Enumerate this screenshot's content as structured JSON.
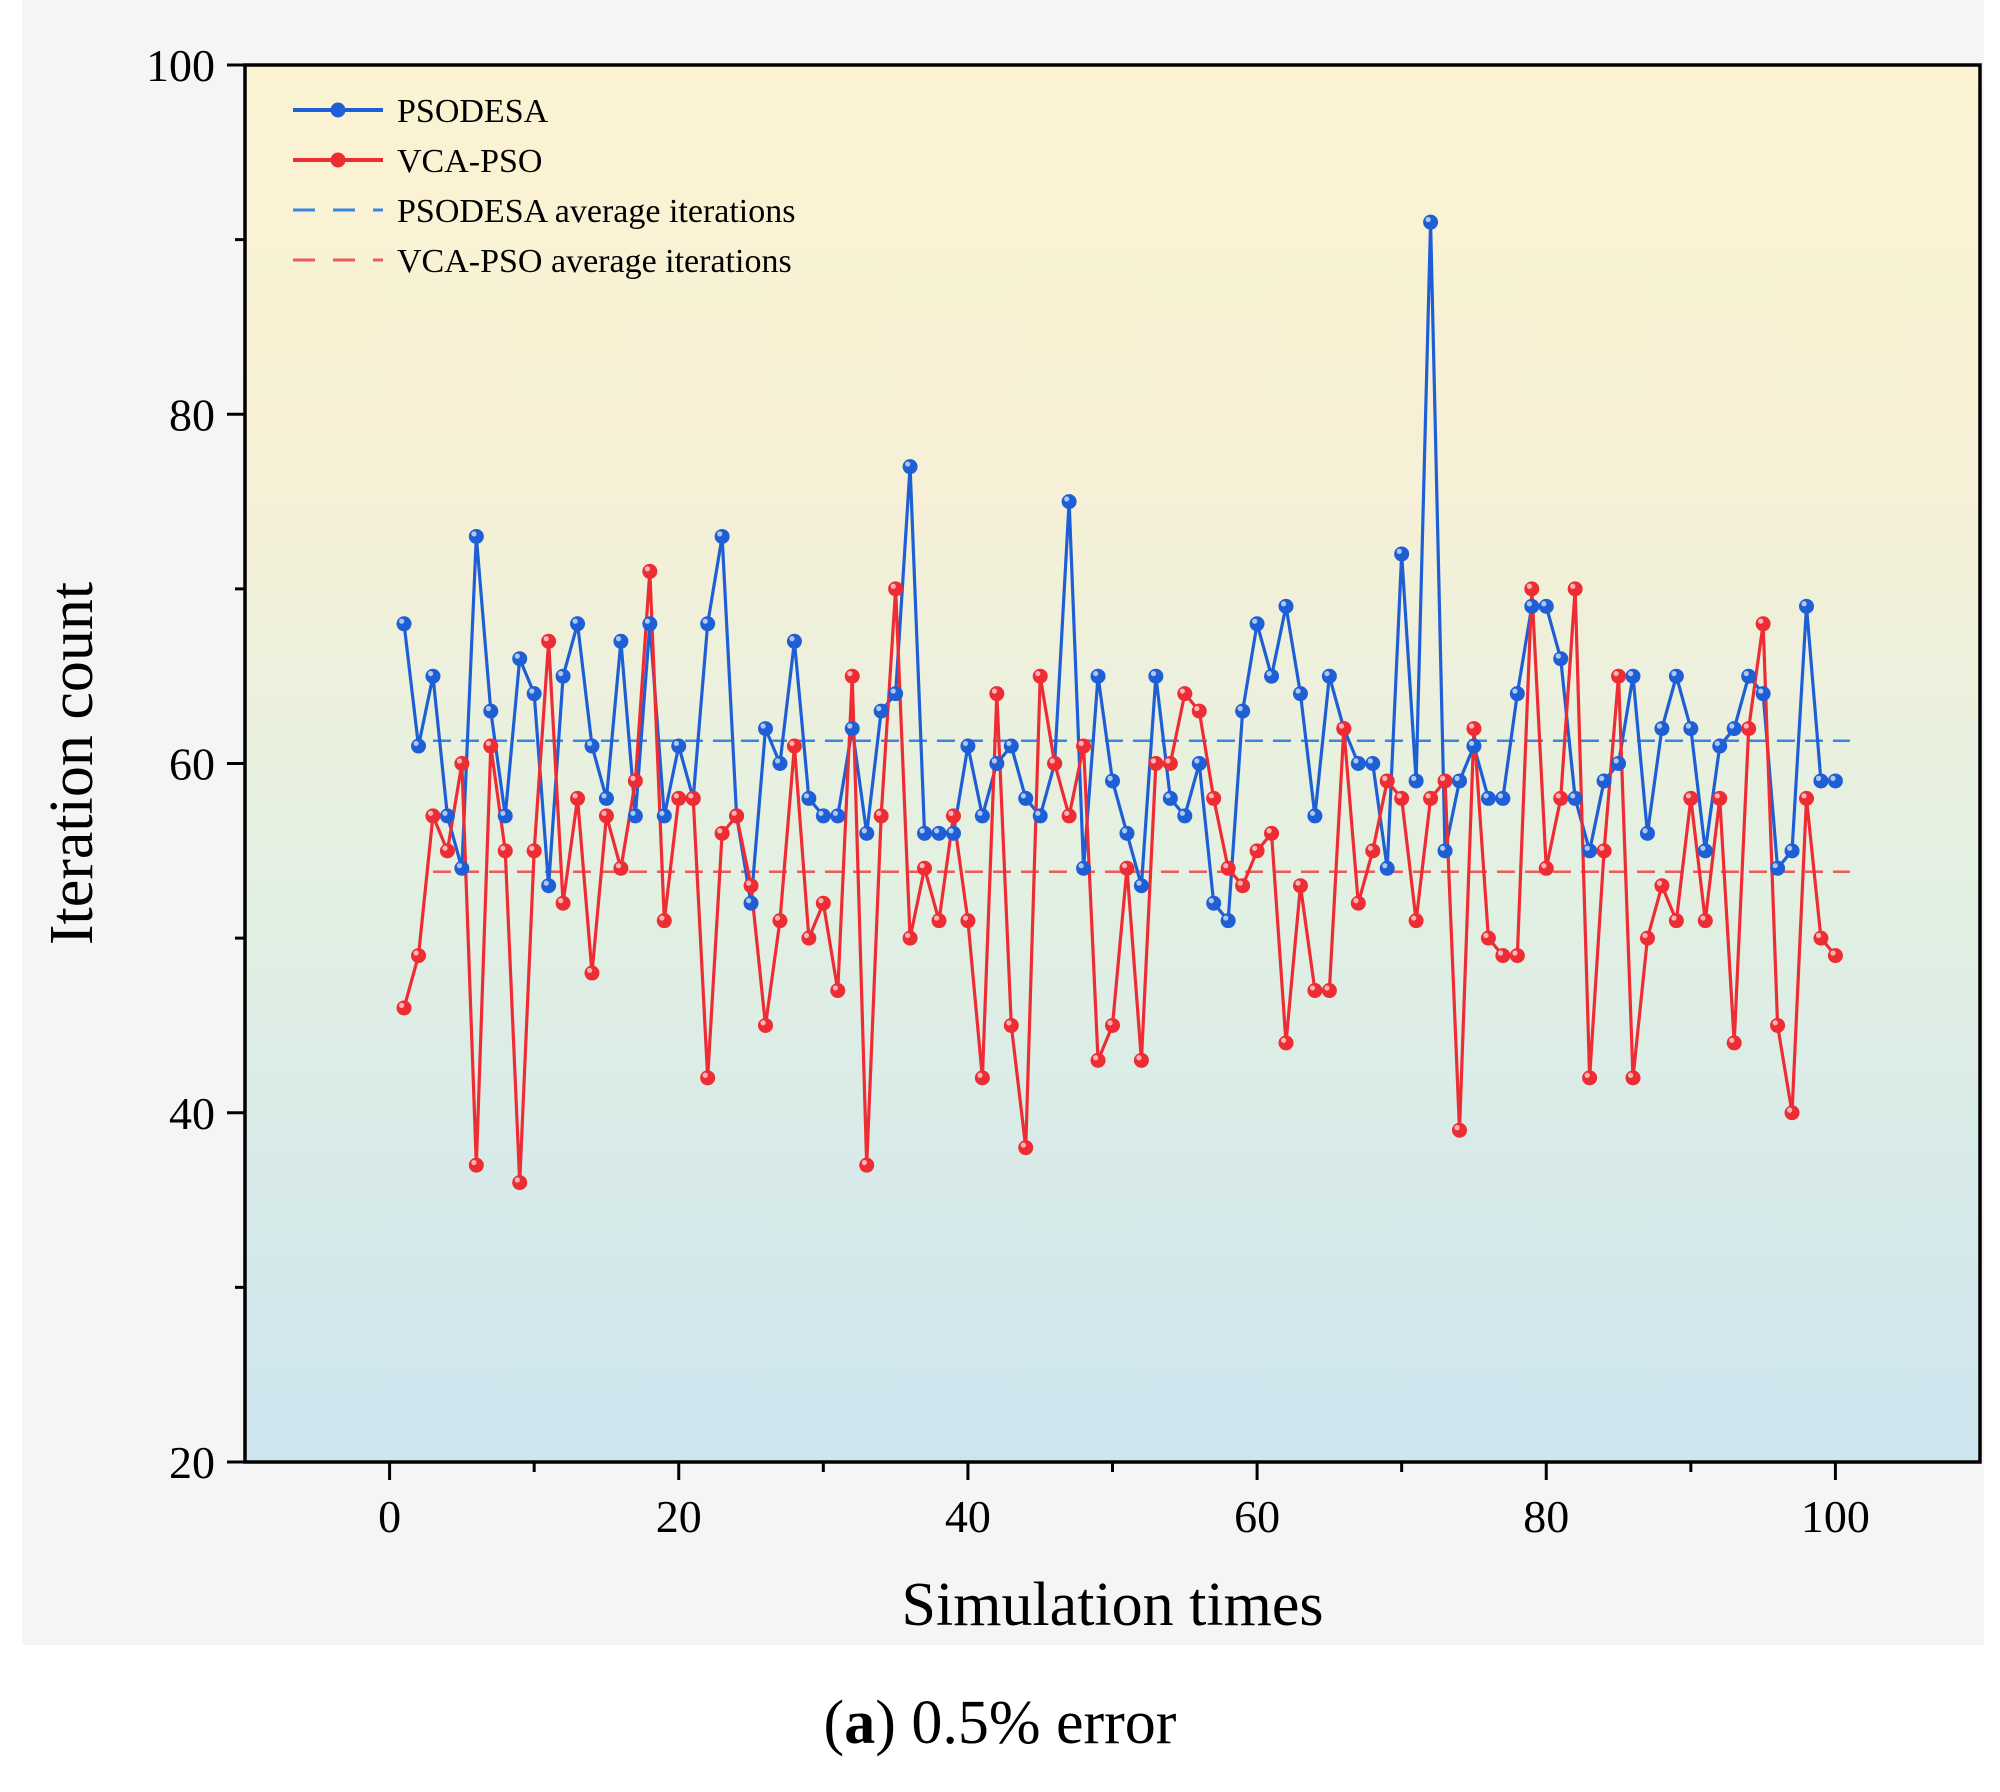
{
  "caption": {
    "open_paren": "(",
    "letter": "a",
    "text": ") 0.5% error"
  },
  "colors": {
    "psodesa": "#1f5fd6",
    "vca": "#ee2c34",
    "psodesa_avg": "#3a86e0",
    "vca_avg": "#ec5a5a",
    "bg_top": "#fbf3d2",
    "bg_mid": "#e3f0e2",
    "bg_bottom": "#cde5ef"
  },
  "chart_data": {
    "type": "line",
    "title": "",
    "xlabel": "Simulation times",
    "ylabel": "Iteration count",
    "xlim": [
      -10,
      110
    ],
    "ylim": [
      20,
      100
    ],
    "xticks": [
      0,
      20,
      40,
      60,
      80,
      100
    ],
    "xtick_labels": [
      "0",
      "20",
      "40",
      "60",
      "80",
      "100"
    ],
    "yticks": [
      20,
      40,
      60,
      80,
      100
    ],
    "ytick_labels": [
      "20",
      "40",
      "60",
      "80",
      "100"
    ],
    "y_minor_ticks": [
      30,
      50,
      70,
      90
    ],
    "x_minor_ticks": [
      10,
      30,
      50,
      70,
      90
    ],
    "legend_position": "top-left",
    "x": [
      1,
      2,
      3,
      4,
      5,
      6,
      7,
      8,
      9,
      10,
      11,
      12,
      13,
      14,
      15,
      16,
      17,
      18,
      19,
      20,
      21,
      22,
      23,
      24,
      25,
      26,
      27,
      28,
      29,
      30,
      31,
      32,
      33,
      34,
      35,
      36,
      37,
      38,
      39,
      40,
      41,
      42,
      43,
      44,
      45,
      46,
      47,
      48,
      49,
      50,
      51,
      52,
      53,
      54,
      55,
      56,
      57,
      58,
      59,
      60,
      61,
      62,
      63,
      64,
      65,
      66,
      67,
      68,
      69,
      70,
      71,
      72,
      73,
      74,
      75,
      76,
      77,
      78,
      79,
      80,
      81,
      82,
      83,
      84,
      85,
      86,
      87,
      88,
      89,
      90,
      91,
      92,
      93,
      94,
      95,
      96,
      97,
      98,
      99,
      100
    ],
    "series": [
      {
        "name": "PSODESA",
        "style": "line-marker",
        "values": [
          68,
          61,
          65,
          57,
          54,
          73,
          63,
          57,
          66,
          64,
          53,
          65,
          68,
          61,
          58,
          67,
          57,
          68,
          57,
          61,
          58,
          68,
          73,
          57,
          52,
          62,
          60,
          67,
          58,
          57,
          57,
          62,
          56,
          63,
          64,
          77,
          56,
          56,
          56,
          61,
          57,
          60,
          61,
          58,
          57,
          60,
          75,
          54,
          65,
          59,
          56,
          53,
          65,
          58,
          57,
          60,
          52,
          51,
          63,
          68,
          65,
          69,
          64,
          57,
          65,
          62,
          60,
          60,
          54,
          72,
          59,
          91,
          55,
          59,
          61,
          58,
          58,
          64,
          69,
          69,
          66,
          58,
          55,
          59,
          60,
          65,
          56,
          62,
          65,
          62,
          55,
          61,
          62,
          65,
          64,
          54,
          55,
          69,
          59,
          59
        ]
      },
      {
        "name": "VCA-PSO",
        "style": "line-marker",
        "values": [
          46,
          49,
          57,
          55,
          60,
          37,
          61,
          55,
          36,
          55,
          67,
          52,
          58,
          48,
          57,
          54,
          59,
          71,
          51,
          58,
          58,
          42,
          56,
          57,
          53,
          45,
          51,
          61,
          50,
          52,
          47,
          65,
          37,
          57,
          70,
          50,
          54,
          51,
          57,
          51,
          42,
          64,
          45,
          38,
          65,
          60,
          57,
          61,
          43,
          45,
          54,
          43,
          60,
          60,
          64,
          63,
          58,
          54,
          53,
          55,
          56,
          44,
          53,
          47,
          47,
          62,
          52,
          55,
          59,
          58,
          51,
          58,
          59,
          39,
          62,
          50,
          49,
          49,
          70,
          54,
          58,
          70,
          42,
          55,
          65,
          42,
          50,
          53,
          51,
          58,
          51,
          58,
          44,
          62,
          68,
          45,
          40,
          58,
          50,
          49
        ]
      },
      {
        "name": "PSODESA average iterations",
        "style": "dashed",
        "x_range": [
          3,
          101
        ],
        "value": 61.3
      },
      {
        "name": "VCA-PSO average iterations",
        "style": "dashed",
        "x_range": [
          3,
          101
        ],
        "value": 53.8
      }
    ]
  }
}
